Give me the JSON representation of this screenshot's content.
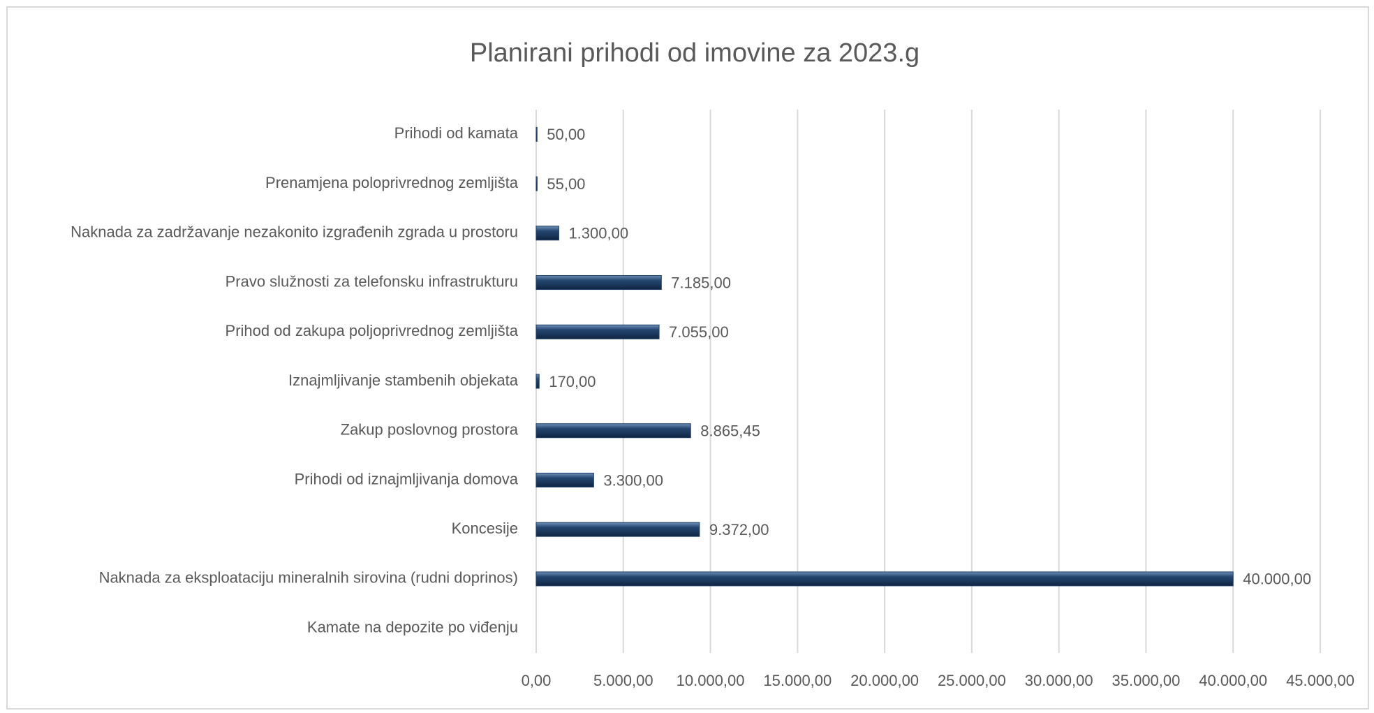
{
  "chart_data": {
    "type": "barh",
    "title": "Planirani prihodi od imovine za 2023.g",
    "categories": [
      "Prihodi od kamata",
      "Prenamjena poloprivrednog zemljišta",
      "Naknada za zadržavanje nezakonito izgrađenih zgrada u prostoru",
      "Pravo služnosti za telefonsku infrastrukturu",
      "Prihod od zakupa poljoprivrednog zemljišta",
      "Iznajmljivanje stambenih objekata",
      "Zakup poslovnog prostora",
      "Prihodi od iznajmljivanja domova",
      "Koncesije",
      "Naknada za eksploataciju mineralnih sirovina (rudni doprinos)",
      "Kamate na depozite po viđenju"
    ],
    "values": [
      50,
      55,
      1300,
      7185,
      7055,
      170,
      8865.45,
      3300,
      9372,
      40000,
      null
    ],
    "value_labels": [
      "50,00",
      "55,00",
      "1.300,00",
      "7.185,00",
      "7.055,00",
      "170,00",
      "8.865,45",
      "3.300,00",
      "9.372,00",
      "40.000,00",
      null
    ],
    "color": "#1f3f6a",
    "xlim": [
      0,
      45000
    ],
    "xticks": [
      {
        "value": 0,
        "label": "0,00"
      },
      {
        "value": 5000,
        "label": "5.000,00"
      },
      {
        "value": 10000,
        "label": "10.000,00"
      },
      {
        "value": 15000,
        "label": "15.000,00"
      },
      {
        "value": 20000,
        "label": "20.000,00"
      },
      {
        "value": 25000,
        "label": "25.000,00"
      },
      {
        "value": 30000,
        "label": "30.000,00"
      },
      {
        "value": 35000,
        "label": "35.000,00"
      },
      {
        "value": 40000,
        "label": "40.000,00"
      },
      {
        "value": 45000,
        "label": "45.000,00"
      }
    ],
    "grid": true
  }
}
